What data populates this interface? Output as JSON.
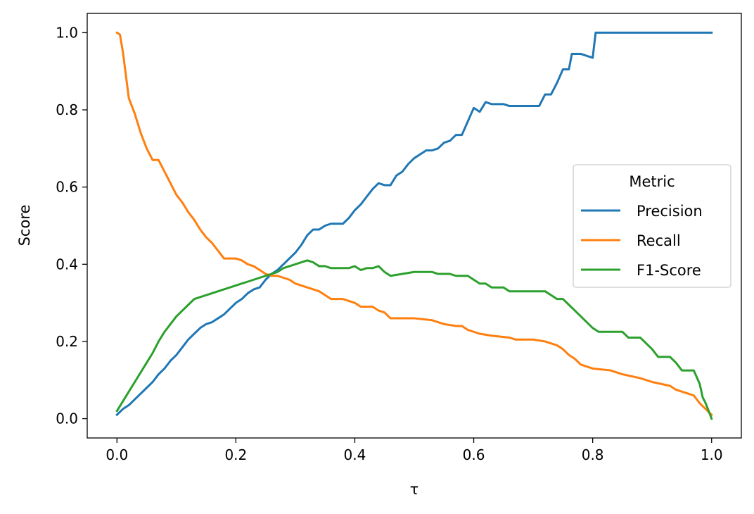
{
  "chart_data": {
    "type": "line",
    "title": "",
    "xlabel": "τ",
    "ylabel": "Score",
    "xlim": [
      -0.05,
      1.05
    ],
    "ylim": [
      -0.05,
      1.05
    ],
    "grid": false,
    "x_ticks": [
      0.0,
      0.2,
      0.4,
      0.6,
      0.8,
      1.0
    ],
    "x_tick_labels": [
      "0.0",
      "0.2",
      "0.4",
      "0.6",
      "0.8",
      "1.0"
    ],
    "y_ticks": [
      0.0,
      0.2,
      0.4,
      0.6,
      0.8,
      1.0
    ],
    "y_tick_labels": [
      "0.0",
      "0.2",
      "0.4",
      "0.6",
      "0.8",
      "1.0"
    ],
    "legend": {
      "title": "Metric",
      "placement": "center-right"
    },
    "series": [
      {
        "name": "Precision",
        "color": "#1f77b4",
        "points": [
          [
            0.0,
            0.01
          ],
          [
            0.01,
            0.025
          ],
          [
            0.02,
            0.035
          ],
          [
            0.03,
            0.05
          ],
          [
            0.04,
            0.065
          ],
          [
            0.05,
            0.08
          ],
          [
            0.06,
            0.095
          ],
          [
            0.07,
            0.115
          ],
          [
            0.08,
            0.13
          ],
          [
            0.09,
            0.15
          ],
          [
            0.1,
            0.165
          ],
          [
            0.11,
            0.185
          ],
          [
            0.12,
            0.205
          ],
          [
            0.13,
            0.22
          ],
          [
            0.14,
            0.235
          ],
          [
            0.15,
            0.245
          ],
          [
            0.16,
            0.25
          ],
          [
            0.17,
            0.26
          ],
          [
            0.18,
            0.27
          ],
          [
            0.19,
            0.285
          ],
          [
            0.2,
            0.3
          ],
          [
            0.21,
            0.31
          ],
          [
            0.22,
            0.325
          ],
          [
            0.23,
            0.335
          ],
          [
            0.24,
            0.34
          ],
          [
            0.25,
            0.36
          ],
          [
            0.26,
            0.375
          ],
          [
            0.27,
            0.385
          ],
          [
            0.28,
            0.4
          ],
          [
            0.29,
            0.415
          ],
          [
            0.3,
            0.43
          ],
          [
            0.31,
            0.45
          ],
          [
            0.32,
            0.475
          ],
          [
            0.33,
            0.49
          ],
          [
            0.34,
            0.49
          ],
          [
            0.35,
            0.5
          ],
          [
            0.36,
            0.505
          ],
          [
            0.37,
            0.505
          ],
          [
            0.38,
            0.505
          ],
          [
            0.39,
            0.52
          ],
          [
            0.4,
            0.54
          ],
          [
            0.41,
            0.555
          ],
          [
            0.42,
            0.575
          ],
          [
            0.43,
            0.595
          ],
          [
            0.44,
            0.61
          ],
          [
            0.45,
            0.605
          ],
          [
            0.46,
            0.605
          ],
          [
            0.47,
            0.63
          ],
          [
            0.48,
            0.64
          ],
          [
            0.49,
            0.66
          ],
          [
            0.5,
            0.675
          ],
          [
            0.51,
            0.685
          ],
          [
            0.52,
            0.695
          ],
          [
            0.53,
            0.695
          ],
          [
            0.54,
            0.7
          ],
          [
            0.55,
            0.715
          ],
          [
            0.56,
            0.72
          ],
          [
            0.57,
            0.735
          ],
          [
            0.58,
            0.735
          ],
          [
            0.59,
            0.77
          ],
          [
            0.6,
            0.805
          ],
          [
            0.61,
            0.795
          ],
          [
            0.62,
            0.82
          ],
          [
            0.63,
            0.815
          ],
          [
            0.64,
            0.815
          ],
          [
            0.65,
            0.815
          ],
          [
            0.66,
            0.81
          ],
          [
            0.67,
            0.81
          ],
          [
            0.68,
            0.81
          ],
          [
            0.69,
            0.81
          ],
          [
            0.7,
            0.81
          ],
          [
            0.71,
            0.81
          ],
          [
            0.72,
            0.84
          ],
          [
            0.73,
            0.84
          ],
          [
            0.74,
            0.87
          ],
          [
            0.75,
            0.905
          ],
          [
            0.76,
            0.905
          ],
          [
            0.765,
            0.945
          ],
          [
            0.78,
            0.945
          ],
          [
            0.79,
            0.94
          ],
          [
            0.8,
            0.935
          ],
          [
            0.805,
            1.0
          ],
          [
            0.85,
            1.0
          ],
          [
            0.9,
            1.0
          ],
          [
            0.95,
            1.0
          ],
          [
            1.0,
            1.0
          ]
        ]
      },
      {
        "name": "Recall",
        "color": "#ff7f0e",
        "points": [
          [
            0.0,
            1.0
          ],
          [
            0.005,
            0.995
          ],
          [
            0.01,
            0.95
          ],
          [
            0.015,
            0.89
          ],
          [
            0.02,
            0.83
          ],
          [
            0.03,
            0.79
          ],
          [
            0.04,
            0.74
          ],
          [
            0.05,
            0.7
          ],
          [
            0.06,
            0.67
          ],
          [
            0.07,
            0.67
          ],
          [
            0.08,
            0.64
          ],
          [
            0.09,
            0.61
          ],
          [
            0.1,
            0.58
          ],
          [
            0.11,
            0.56
          ],
          [
            0.12,
            0.535
          ],
          [
            0.13,
            0.515
          ],
          [
            0.14,
            0.49
          ],
          [
            0.15,
            0.47
          ],
          [
            0.16,
            0.455
          ],
          [
            0.17,
            0.435
          ],
          [
            0.18,
            0.415
          ],
          [
            0.19,
            0.415
          ],
          [
            0.2,
            0.415
          ],
          [
            0.21,
            0.41
          ],
          [
            0.22,
            0.4
          ],
          [
            0.23,
            0.395
          ],
          [
            0.24,
            0.385
          ],
          [
            0.25,
            0.375
          ],
          [
            0.26,
            0.37
          ],
          [
            0.27,
            0.37
          ],
          [
            0.28,
            0.365
          ],
          [
            0.29,
            0.36
          ],
          [
            0.3,
            0.35
          ],
          [
            0.31,
            0.345
          ],
          [
            0.32,
            0.34
          ],
          [
            0.33,
            0.335
          ],
          [
            0.34,
            0.33
          ],
          [
            0.35,
            0.32
          ],
          [
            0.36,
            0.31
          ],
          [
            0.38,
            0.31
          ],
          [
            0.4,
            0.3
          ],
          [
            0.41,
            0.29
          ],
          [
            0.43,
            0.29
          ],
          [
            0.44,
            0.28
          ],
          [
            0.45,
            0.275
          ],
          [
            0.46,
            0.26
          ],
          [
            0.5,
            0.26
          ],
          [
            0.53,
            0.255
          ],
          [
            0.55,
            0.245
          ],
          [
            0.57,
            0.24
          ],
          [
            0.58,
            0.24
          ],
          [
            0.59,
            0.23
          ],
          [
            0.6,
            0.225
          ],
          [
            0.61,
            0.22
          ],
          [
            0.63,
            0.215
          ],
          [
            0.66,
            0.21
          ],
          [
            0.67,
            0.205
          ],
          [
            0.7,
            0.205
          ],
          [
            0.72,
            0.2
          ],
          [
            0.74,
            0.19
          ],
          [
            0.75,
            0.18
          ],
          [
            0.76,
            0.165
          ],
          [
            0.77,
            0.155
          ],
          [
            0.78,
            0.14
          ],
          [
            0.8,
            0.13
          ],
          [
            0.83,
            0.125
          ],
          [
            0.85,
            0.115
          ],
          [
            0.88,
            0.105
          ],
          [
            0.9,
            0.095
          ],
          [
            0.93,
            0.085
          ],
          [
            0.94,
            0.075
          ],
          [
            0.97,
            0.06
          ],
          [
            0.98,
            0.04
          ],
          [
            0.99,
            0.025
          ],
          [
            1.0,
            0.01
          ]
        ]
      },
      {
        "name": "F1-Score",
        "color": "#2ca02c",
        "points": [
          [
            0.0,
            0.02
          ],
          [
            0.01,
            0.045
          ],
          [
            0.02,
            0.07
          ],
          [
            0.03,
            0.095
          ],
          [
            0.04,
            0.12
          ],
          [
            0.05,
            0.145
          ],
          [
            0.06,
            0.17
          ],
          [
            0.07,
            0.2
          ],
          [
            0.08,
            0.225
          ],
          [
            0.09,
            0.245
          ],
          [
            0.1,
            0.265
          ],
          [
            0.11,
            0.28
          ],
          [
            0.12,
            0.295
          ],
          [
            0.13,
            0.31
          ],
          [
            0.14,
            0.315
          ],
          [
            0.15,
            0.32
          ],
          [
            0.16,
            0.325
          ],
          [
            0.17,
            0.33
          ],
          [
            0.18,
            0.335
          ],
          [
            0.19,
            0.34
          ],
          [
            0.2,
            0.345
          ],
          [
            0.21,
            0.35
          ],
          [
            0.22,
            0.355
          ],
          [
            0.23,
            0.36
          ],
          [
            0.24,
            0.365
          ],
          [
            0.25,
            0.37
          ],
          [
            0.26,
            0.375
          ],
          [
            0.27,
            0.38
          ],
          [
            0.28,
            0.39
          ],
          [
            0.29,
            0.395
          ],
          [
            0.3,
            0.4
          ],
          [
            0.31,
            0.405
          ],
          [
            0.32,
            0.41
          ],
          [
            0.33,
            0.405
          ],
          [
            0.34,
            0.395
          ],
          [
            0.35,
            0.395
          ],
          [
            0.36,
            0.39
          ],
          [
            0.37,
            0.39
          ],
          [
            0.38,
            0.39
          ],
          [
            0.39,
            0.39
          ],
          [
            0.4,
            0.395
          ],
          [
            0.41,
            0.385
          ],
          [
            0.42,
            0.39
          ],
          [
            0.43,
            0.39
          ],
          [
            0.44,
            0.395
          ],
          [
            0.45,
            0.38
          ],
          [
            0.46,
            0.37
          ],
          [
            0.48,
            0.375
          ],
          [
            0.5,
            0.38
          ],
          [
            0.53,
            0.38
          ],
          [
            0.54,
            0.375
          ],
          [
            0.56,
            0.375
          ],
          [
            0.57,
            0.37
          ],
          [
            0.58,
            0.37
          ],
          [
            0.59,
            0.37
          ],
          [
            0.6,
            0.36
          ],
          [
            0.61,
            0.35
          ],
          [
            0.62,
            0.35
          ],
          [
            0.63,
            0.34
          ],
          [
            0.65,
            0.34
          ],
          [
            0.66,
            0.33
          ],
          [
            0.72,
            0.33
          ],
          [
            0.73,
            0.32
          ],
          [
            0.74,
            0.31
          ],
          [
            0.75,
            0.31
          ],
          [
            0.76,
            0.295
          ],
          [
            0.77,
            0.28
          ],
          [
            0.78,
            0.265
          ],
          [
            0.79,
            0.25
          ],
          [
            0.8,
            0.235
          ],
          [
            0.81,
            0.225
          ],
          [
            0.85,
            0.225
          ],
          [
            0.86,
            0.21
          ],
          [
            0.88,
            0.21
          ],
          [
            0.89,
            0.195
          ],
          [
            0.9,
            0.18
          ],
          [
            0.91,
            0.16
          ],
          [
            0.93,
            0.16
          ],
          [
            0.94,
            0.145
          ],
          [
            0.95,
            0.125
          ],
          [
            0.97,
            0.125
          ],
          [
            0.98,
            0.09
          ],
          [
            0.985,
            0.055
          ],
          [
            0.99,
            0.04
          ],
          [
            1.0,
            0.0
          ]
        ]
      }
    ]
  }
}
